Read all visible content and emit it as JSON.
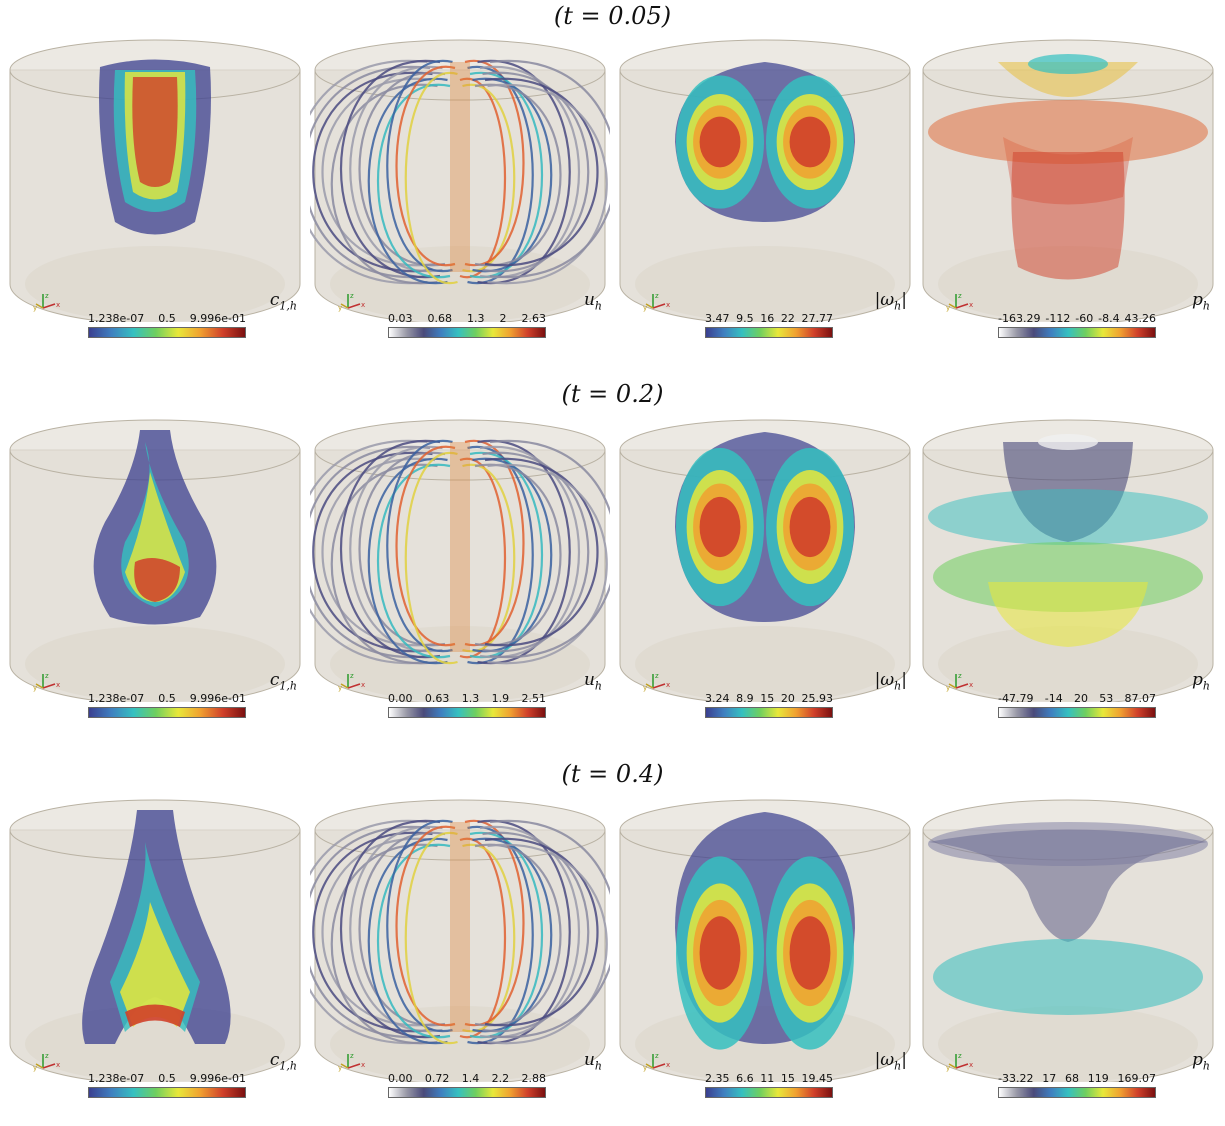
{
  "rows": [
    {
      "title": "(t = 0.05)",
      "panels": [
        {
          "var": "c1,h",
          "label_main": "c",
          "label_sub": "1,h",
          "ticks": [
            "1.238e-07",
            "0.5",
            "9.996e-01"
          ]
        },
        {
          "var": "uh",
          "label_main": "u",
          "label_sub": "h",
          "ticks": [
            "0.03",
            "0.68",
            "1.3",
            "2",
            "2.63"
          ]
        },
        {
          "var": "wh",
          "label_main": "|ω",
          "label_sub": "h",
          "label_tail": "|",
          "ticks": [
            "3.47",
            "9.5",
            "16",
            "22",
            "27.77"
          ]
        },
        {
          "var": "ph",
          "label_main": "p",
          "label_sub": "h",
          "ticks": [
            "-163.29",
            "-112",
            "-60",
            "-8.4",
            "43.26"
          ]
        }
      ]
    },
    {
      "title": "(t = 0.2)",
      "panels": [
        {
          "var": "c1,h",
          "label_main": "c",
          "label_sub": "1,h",
          "ticks": [
            "1.238e-07",
            "0.5",
            "9.996e-01"
          ]
        },
        {
          "var": "uh",
          "label_main": "u",
          "label_sub": "h",
          "ticks": [
            "0.00",
            "0.63",
            "1.3",
            "1.9",
            "2.51"
          ]
        },
        {
          "var": "wh",
          "label_main": "|ω",
          "label_sub": "h",
          "label_tail": "|",
          "ticks": [
            "3.24",
            "8.9",
            "15",
            "20",
            "25.93"
          ]
        },
        {
          "var": "ph",
          "label_main": "p",
          "label_sub": "h",
          "ticks": [
            "-47.79",
            "-14",
            "20",
            "53",
            "87.07"
          ]
        }
      ]
    },
    {
      "title": "(t = 0.4)",
      "panels": [
        {
          "var": "c1,h",
          "label_main": "c",
          "label_sub": "1,h",
          "ticks": [
            "1.238e-07",
            "0.5",
            "9.996e-01"
          ]
        },
        {
          "var": "uh",
          "label_main": "u",
          "label_sub": "h",
          "ticks": [
            "0.00",
            "0.72",
            "1.4",
            "2.2",
            "2.88"
          ]
        },
        {
          "var": "wh",
          "label_main": "|ω",
          "label_sub": "h",
          "label_tail": "|",
          "ticks": [
            "2.35",
            "6.6",
            "11",
            "15",
            "19.45"
          ]
        },
        {
          "var": "ph",
          "label_main": "p",
          "label_sub": "h",
          "ticks": [
            "-33.22",
            "17",
            "68",
            "119",
            "169.07"
          ]
        }
      ]
    }
  ],
  "axis_letters": {
    "x": "x",
    "y": "y",
    "z": "z"
  },
  "colors": {
    "cylinder": "#cfc9bc",
    "cylinder_edge": "#b9b2a3",
    "jet_colormap": [
      "#3b3f8f",
      "#3f7fc0",
      "#35c0c0",
      "#6fcf5f",
      "#e8e83a",
      "#f0a030",
      "#d0402a",
      "#7a1010"
    ],
    "grey_colormap": [
      "#ffffff",
      "#9a9aa8",
      "#4a4a7a",
      "#3f7fc0",
      "#35c0c0",
      "#6fcf5f",
      "#e8e83a",
      "#f0a030",
      "#d0402a",
      "#7a1010"
    ]
  }
}
